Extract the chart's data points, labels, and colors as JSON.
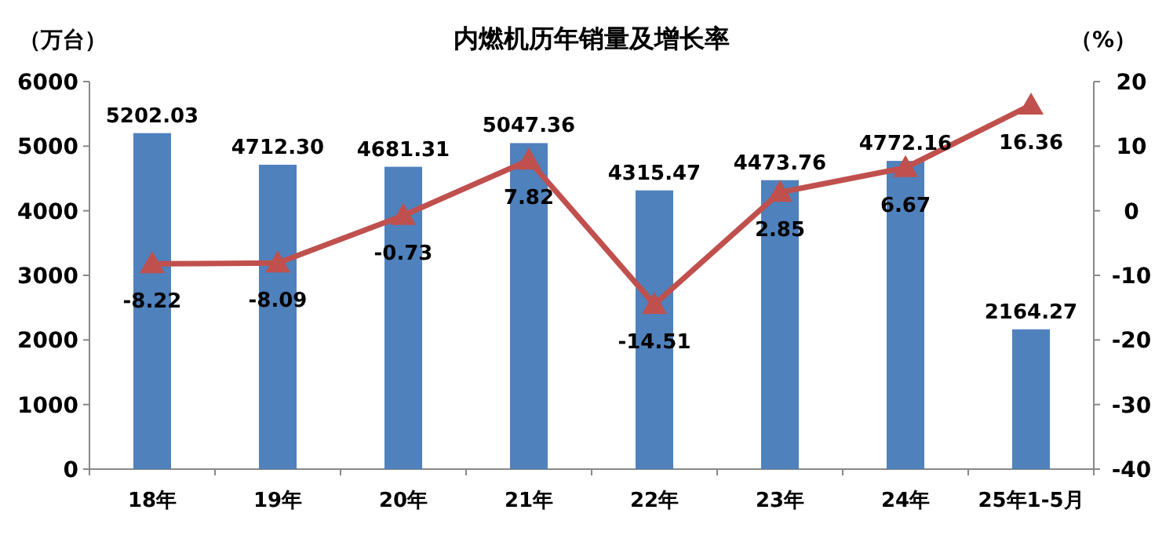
{
  "chart_data": {
    "type": "bar",
    "title": "内燃机历年销量及增长率",
    "ylabel": "（万台）",
    "y2label": "（%）",
    "categories": [
      "18年",
      "19年",
      "20年",
      "21年",
      "22年",
      "23年",
      "24年",
      "25年1-5月"
    ],
    "series": [
      {
        "color": "#4f81bd",
        "values": [
          5202.03,
          4712.3,
          4681.31,
          5047.36,
          4315.47,
          4473.76,
          4772.16,
          2164.27
        ],
        "value_labels": [
          "5202.03",
          "4712.30",
          "4681.31",
          "5047.36",
          "4315.47",
          "4473.76",
          "4772.16",
          "2164.27"
        ]
      },
      {
        "type": "line",
        "axis": "y2",
        "color": "#c0504d",
        "marker": "triangle",
        "values": [
          -8.22,
          -8.09,
          -0.73,
          7.82,
          -14.51,
          2.85,
          6.67,
          16.36
        ],
        "value_labels": [
          "-8.22",
          "-8.09",
          "-0.73",
          "7.82",
          "-14.51",
          "2.85",
          "6.67",
          "16.36"
        ]
      }
    ],
    "ylim": [
      0,
      6000
    ],
    "yticks": [
      0,
      1000,
      2000,
      3000,
      4000,
      5000,
      6000
    ],
    "y2lim": [
      -40,
      20
    ],
    "y2ticks": [
      -40,
      -30,
      -20,
      -10,
      0,
      10,
      20
    ]
  }
}
